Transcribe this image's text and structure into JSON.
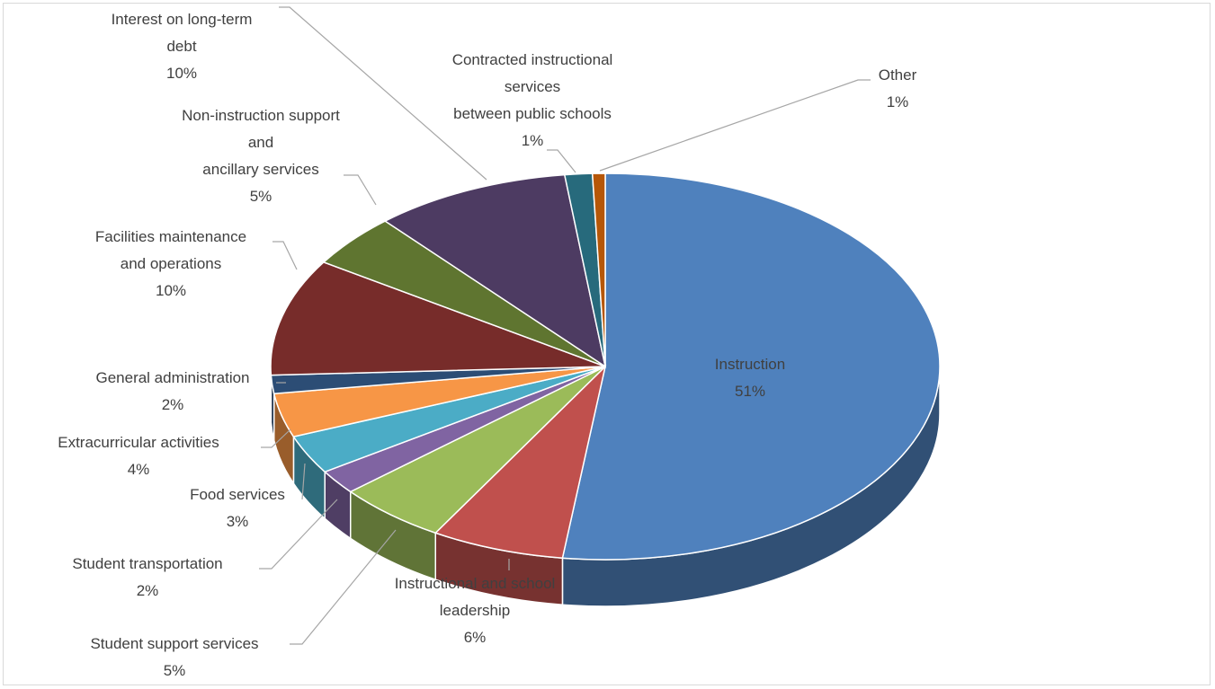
{
  "chart_data": {
    "type": "pie",
    "variant": "3d-pie",
    "title": "",
    "slices": [
      {
        "label": "Instruction",
        "label_lines": [
          "Instruction"
        ],
        "pct_label": "51%",
        "value": 51,
        "color": "#4f81bd",
        "label_inside": true
      },
      {
        "label": "Instructional and school leadership",
        "label_lines": [
          "Instructional and school",
          "leadership"
        ],
        "pct_label": "6%",
        "value": 6.3,
        "color": "#c0504d"
      },
      {
        "label": "Student support services",
        "label_lines": [
          "Student support services"
        ],
        "pct_label": "5%",
        "value": 5.2,
        "color": "#9bbb59"
      },
      {
        "label": "Student transportation",
        "label_lines": [
          "Student transportation"
        ],
        "pct_label": "2%",
        "value": 2,
        "color": "#8064a2"
      },
      {
        "label": "Food services",
        "label_lines": [
          "Food services"
        ],
        "pct_label": "3%",
        "value": 3.2,
        "color": "#4bacc6"
      },
      {
        "label": "Extracurricular activities",
        "label_lines": [
          "Extracurricular activities"
        ],
        "pct_label": "4%",
        "value": 3.6,
        "color": "#f79646"
      },
      {
        "label": "General administration",
        "label_lines": [
          "General administration"
        ],
        "pct_label": "2%",
        "value": 1.5,
        "color": "#2c4d75"
      },
      {
        "label": "Facilities maintenance and operations",
        "label_lines": [
          "Facilities maintenance",
          "and operations"
        ],
        "pct_label": "10%",
        "value": 9.6,
        "color": "#772c2a"
      },
      {
        "label": "Non-instruction support and ancillary services",
        "label_lines": [
          "Non-instruction support",
          "and",
          "ancillary services"
        ],
        "pct_label": "5%",
        "value": 4.4,
        "color": "#5f7530"
      },
      {
        "label": "Interest on long-term debt",
        "label_lines": [
          "Interest on long-term",
          "debt"
        ],
        "pct_label": "10%",
        "value": 9.3,
        "color": "#4d3b62"
      },
      {
        "label": "Contracted instructional services between public schools",
        "label_lines": [
          "Contracted instructional",
          "services",
          "between public schools"
        ],
        "pct_label": "1%",
        "value": 1.3,
        "color": "#276a7c"
      },
      {
        "label": "Other",
        "label_lines": [
          "Other"
        ],
        "pct_label": "1%",
        "value": 0.6,
        "color": "#b65708"
      }
    ]
  }
}
